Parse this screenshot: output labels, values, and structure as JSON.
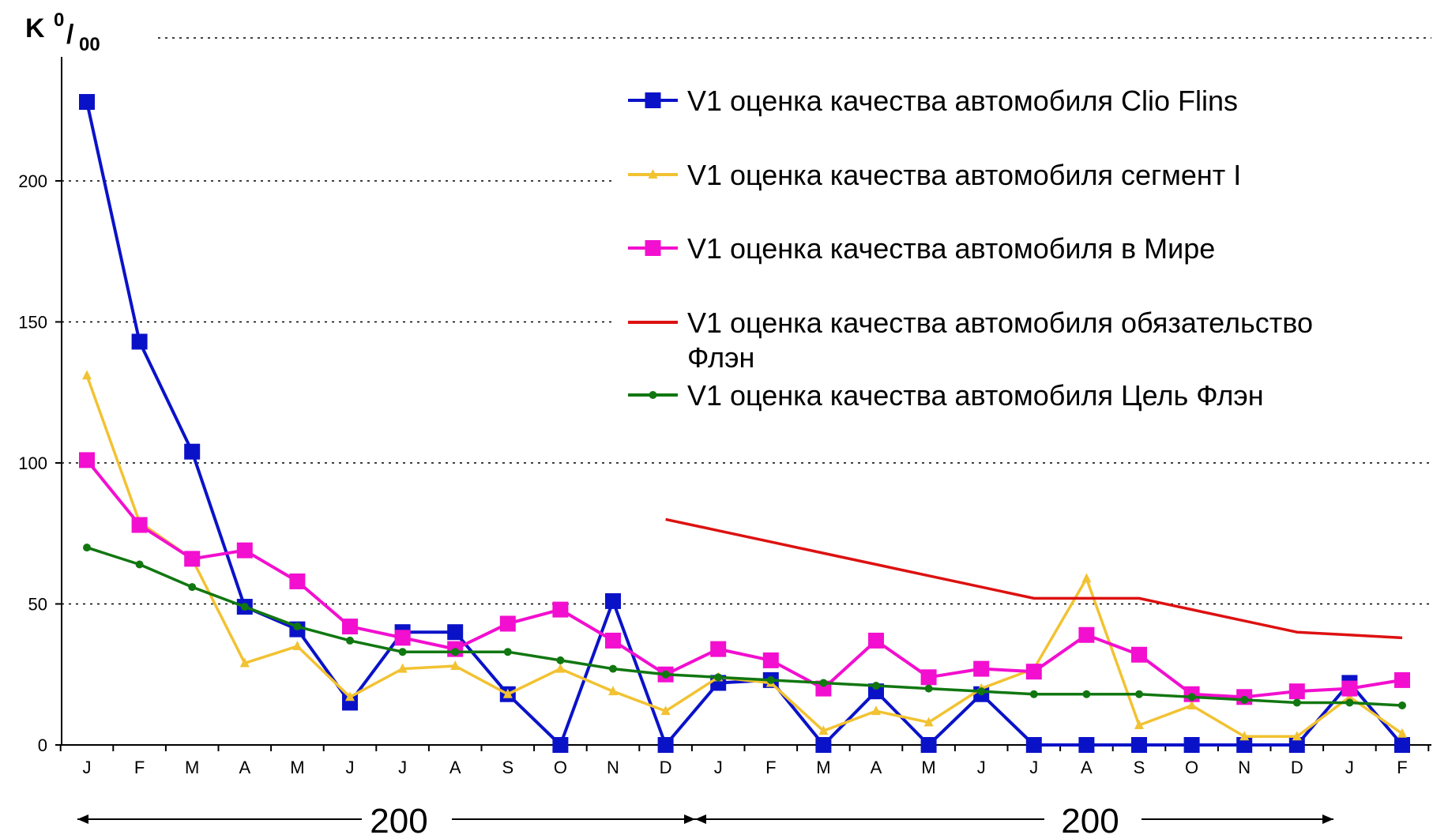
{
  "chart_data": {
    "type": "line",
    "ylabel": {
      "main": "K",
      "sup": "0",
      "sub": "00",
      "slash": "/"
    },
    "ylim": [
      0,
      230
    ],
    "yticks": [
      0,
      50,
      100,
      150,
      200
    ],
    "grid": "horizontal-dotted",
    "legend_placement": "top-right",
    "categories": [
      "J",
      "F",
      "M",
      "A",
      "M",
      "J",
      "J",
      "A",
      "S",
      "O",
      "N",
      "D",
      "J",
      "F",
      "M",
      "A",
      "M",
      "J",
      "J",
      "A",
      "S",
      "O",
      "N",
      "D",
      "J",
      "F"
    ],
    "periods": [
      "200",
      "200"
    ],
    "series": [
      {
        "name": "V1 оценка качества автомобиля  Clio Flins",
        "color": "#0a12c8",
        "marker": "square",
        "values": [
          228,
          143,
          104,
          49,
          41,
          15,
          40,
          40,
          18,
          0,
          51,
          0,
          22,
          23,
          0,
          19,
          0,
          18,
          0,
          0,
          0,
          0,
          0,
          0,
          22,
          0
        ]
      },
      {
        "name": "V1 оценка качества автомобиля  сегмент I",
        "color": "#f2c232",
        "marker": "triangle",
        "values": [
          131,
          79,
          66,
          29,
          35,
          17,
          27,
          28,
          18,
          27,
          19,
          12,
          24,
          22,
          5,
          12,
          8,
          20,
          27,
          59,
          7,
          14,
          3,
          3,
          17,
          4
        ]
      },
      {
        "name": "V1 оценка качества автомобиля в Мире",
        "color": "#f20fcf",
        "marker": "square",
        "values": [
          101,
          78,
          66,
          69,
          58,
          42,
          38,
          34,
          43,
          48,
          37,
          25,
          34,
          30,
          20,
          37,
          24,
          27,
          26,
          39,
          32,
          18,
          17,
          19,
          20,
          23
        ]
      },
      {
        "name_lines": [
          "V1 оценка качества автомобиля обязательство",
          "Флэн"
        ],
        "color": "#dd1111",
        "marker": "none",
        "values": [
          null,
          null,
          null,
          null,
          null,
          null,
          null,
          null,
          null,
          null,
          null,
          80,
          76,
          72,
          68,
          64,
          60,
          56,
          52,
          52,
          52,
          48,
          44,
          40,
          39,
          38
        ]
      },
      {
        "name": "V1 оценка качества автомобиля  Цель Флэн",
        "color": "#117711",
        "marker": "dot",
        "values": [
          70,
          64,
          56,
          49,
          42,
          37,
          33,
          33,
          33,
          30,
          27,
          25,
          24,
          23,
          22,
          21,
          20,
          19,
          18,
          18,
          18,
          17,
          16,
          15,
          15,
          14
        ]
      }
    ]
  }
}
